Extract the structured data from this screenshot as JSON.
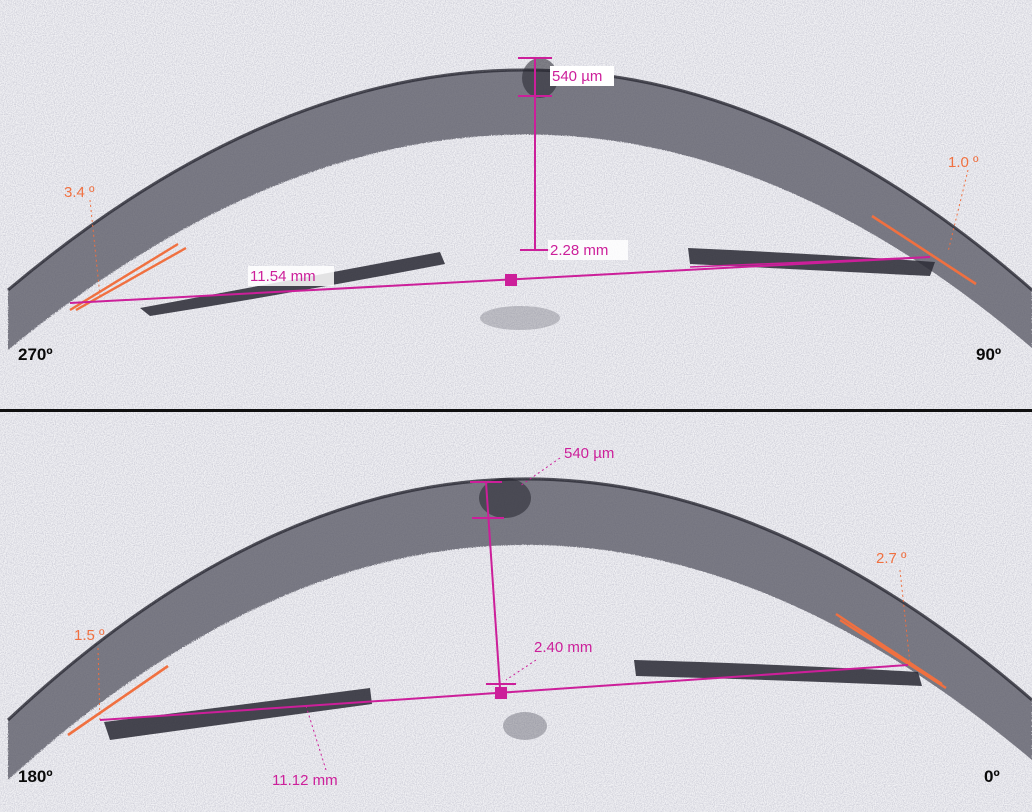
{
  "colors": {
    "measurement": "#cc1f9a",
    "angle": "#f07040",
    "tissue": "#3a3a44",
    "background": "#f4f4f6",
    "divider": "#101010"
  },
  "panels": [
    {
      "orientation_left": "270º",
      "orientation_right": "90º",
      "central_thickness": "540 µm",
      "anterior_chamber_depth": "2.28 mm",
      "angle_to_angle": "11.54 mm",
      "angle_left": "3.4 º",
      "angle_right": "1.0 º"
    },
    {
      "orientation_left": "180º",
      "orientation_right": "0º",
      "central_thickness": "540 µm",
      "anterior_chamber_depth": "2.40 mm",
      "angle_to_angle": "11.12 mm",
      "angle_left": "1.5 º",
      "angle_right": "2.7 º"
    }
  ]
}
